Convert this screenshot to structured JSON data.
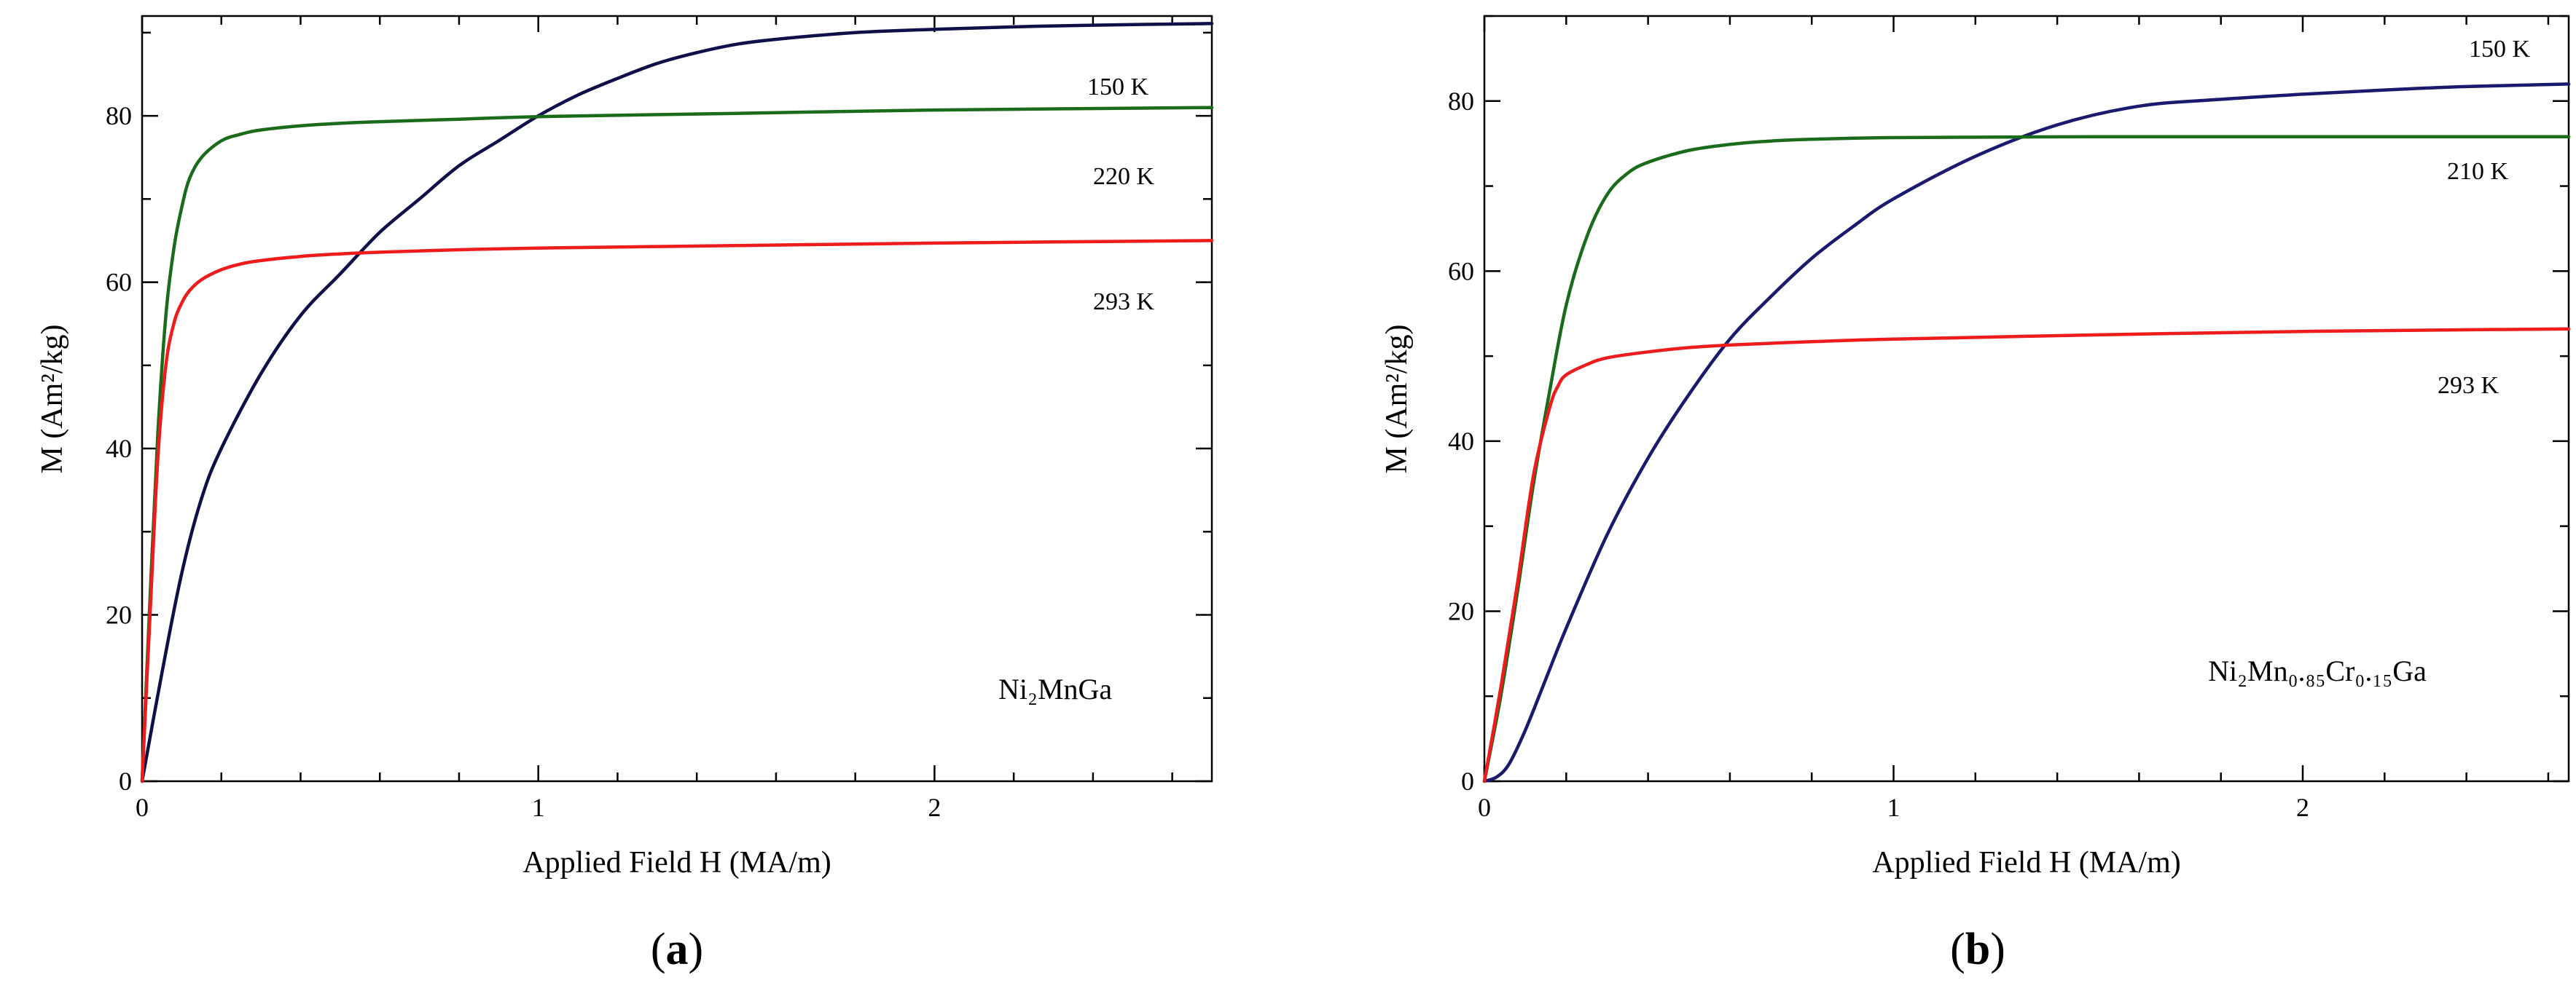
{
  "chart_data": [
    {
      "type": "line",
      "panel_label": "a",
      "sample": "Ni₂MnGa",
      "xlabel": "Applied Field  H (MA/m)",
      "ylabel": "M (Am²/kg)",
      "xlim": [
        0,
        2.7
      ],
      "ylim": [
        0,
        92
      ],
      "x_ticks": [
        0,
        1,
        2
      ],
      "y_ticks": [
        0,
        20,
        40,
        60,
        80
      ],
      "series": [
        {
          "name": "150 K",
          "color": "#0f0f4a",
          "x": [
            0,
            0.05,
            0.1,
            0.15,
            0.2,
            0.3,
            0.4,
            0.5,
            0.6,
            0.7,
            0.8,
            0.9,
            1.0,
            1.1,
            1.2,
            1.3,
            1.4,
            1.5,
            1.6,
            1.8,
            2.0,
            2.2,
            2.4,
            2.7
          ],
          "y": [
            0,
            13,
            25,
            34,
            40,
            49,
            56,
            61,
            66,
            70,
            74,
            77,
            80,
            82.5,
            84.5,
            86.3,
            87.6,
            88.6,
            89.2,
            90.0,
            90.4,
            90.7,
            90.9,
            91.1
          ]
        },
        {
          "name": "220 K",
          "color": "#1a6b1a",
          "x": [
            0,
            0.02,
            0.04,
            0.06,
            0.08,
            0.1,
            0.12,
            0.15,
            0.2,
            0.25,
            0.3,
            0.4,
            0.5,
            0.6,
            0.8,
            1.0,
            1.5,
            2.0,
            2.7
          ],
          "y": [
            0,
            22,
            42,
            56,
            64,
            69,
            72.5,
            75,
            77,
            77.8,
            78.3,
            78.8,
            79.1,
            79.3,
            79.6,
            79.9,
            80.3,
            80.7,
            81.0
          ]
        },
        {
          "name": "293 K",
          "color": "#ee1c1c",
          "x": [
            0,
            0.02,
            0.04,
            0.06,
            0.08,
            0.1,
            0.12,
            0.15,
            0.2,
            0.25,
            0.3,
            0.4,
            0.5,
            0.6,
            0.8,
            1.0,
            1.5,
            2.0,
            2.7
          ],
          "y": [
            0,
            20,
            39,
            50,
            55,
            57.5,
            59,
            60.3,
            61.5,
            62.2,
            62.6,
            63.1,
            63.4,
            63.6,
            63.9,
            64.1,
            64.4,
            64.7,
            65.0
          ]
        }
      ]
    },
    {
      "type": "line",
      "panel_label": "b",
      "sample": "Ni₂Mn₀.₈₅Cr₀.₁₅Ga",
      "xlabel": "Applied Field  H (MA/m)",
      "ylabel": "M (Am²/kg)",
      "xlim": [
        0,
        2.65
      ],
      "ylim": [
        0,
        90
      ],
      "x_ticks": [
        0,
        1,
        2
      ],
      "y_ticks": [
        0,
        20,
        40,
        60,
        80
      ],
      "series": [
        {
          "name": "150 K",
          "color": "#1a1a6e",
          "x": [
            0,
            0.03,
            0.06,
            0.1,
            0.15,
            0.2,
            0.3,
            0.4,
            0.5,
            0.6,
            0.7,
            0.8,
            0.9,
            1.0,
            1.2,
            1.4,
            1.6,
            1.8,
            2.0,
            2.2,
            2.4,
            2.65
          ],
          "y": [
            0,
            0.5,
            2,
            6,
            12,
            18,
            29,
            38,
            45.5,
            52,
            57,
            61.5,
            65.2,
            68.5,
            73.5,
            77.2,
            79.4,
            80.2,
            80.8,
            81.3,
            81.7,
            82.0
          ]
        },
        {
          "name": "210 K",
          "color": "#1a6b1a",
          "x": [
            0,
            0.04,
            0.08,
            0.12,
            0.16,
            0.2,
            0.25,
            0.3,
            0.35,
            0.4,
            0.5,
            0.6,
            0.7,
            0.8,
            1.0,
            1.5,
            2.0,
            2.65
          ],
          "y": [
            0,
            10,
            22,
            35,
            46,
            56,
            64,
            69,
            71.5,
            72.8,
            74.2,
            74.9,
            75.3,
            75.5,
            75.7,
            75.8,
            75.8,
            75.8
          ]
        },
        {
          "name": "293 K",
          "color": "#ee1c1c",
          "x": [
            0,
            0.04,
            0.08,
            0.12,
            0.16,
            0.18,
            0.2,
            0.25,
            0.3,
            0.4,
            0.5,
            0.6,
            0.8,
            1.0,
            1.5,
            2.0,
            2.65
          ],
          "y": [
            0,
            11,
            23,
            36,
            44,
            46.5,
            47.8,
            49,
            49.8,
            50.5,
            51,
            51.3,
            51.7,
            52.0,
            52.5,
            52.9,
            53.2
          ]
        }
      ]
    }
  ]
}
